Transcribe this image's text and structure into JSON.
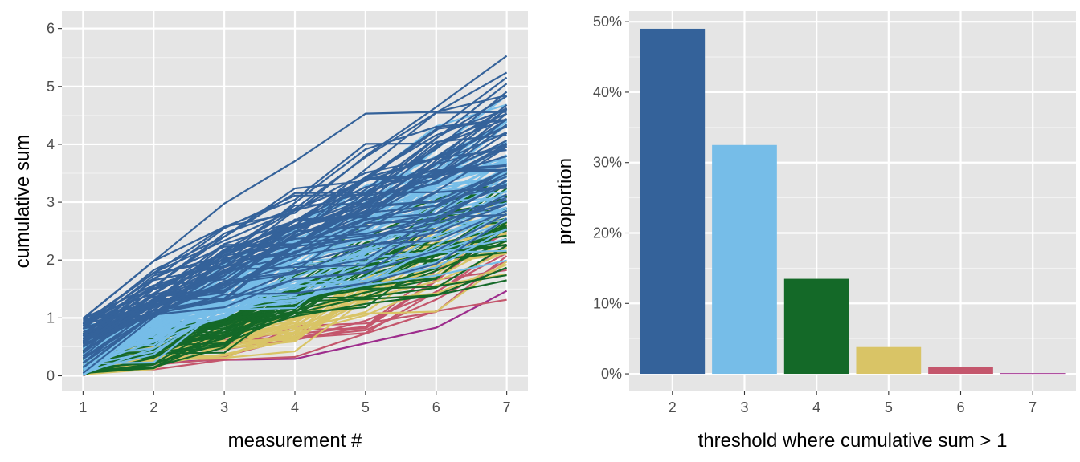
{
  "colors": {
    "panel_bg": "#e5e5e5",
    "grid": "#ffffff",
    "thresholds": {
      "2": "#34629a",
      "3": "#76bde8",
      "4": "#146928",
      "5": "#d9c466",
      "6": "#c4566c",
      "7": "#9d2c8c"
    }
  },
  "chart_data": [
    {
      "type": "line",
      "xlabel": "measurement #",
      "ylabel": "cumulative sum",
      "x": [
        1,
        2,
        3,
        4,
        5,
        6,
        7
      ],
      "xlim": [
        0.7,
        7.3
      ],
      "ylim": [
        -0.27,
        6.3
      ],
      "xticks": [
        1,
        2,
        3,
        4,
        5,
        6,
        7
      ],
      "yticks": [
        0,
        1,
        2,
        3,
        4,
        5,
        6
      ],
      "grid": true,
      "legend": "none",
      "series_groups": [
        {
          "threshold": 2,
          "approx_count": 60,
          "y7_range": [
            3.9,
            5.55
          ]
        },
        {
          "threshold": 3,
          "approx_count": 60,
          "y7_range": [
            2.6,
            5.0
          ]
        },
        {
          "threshold": 4,
          "approx_count": 40,
          "y7_range": [
            1.5,
            3.2
          ]
        },
        {
          "threshold": 5,
          "approx_count": 25,
          "y7_range": [
            1.25,
            2.6
          ]
        },
        {
          "threshold": 6,
          "approx_count": 8,
          "y7_range": [
            1.2,
            1.6
          ]
        },
        {
          "threshold": 7,
          "approx_count": 1,
          "y7_range": [
            1.5,
            1.5
          ]
        }
      ]
    },
    {
      "type": "bar",
      "xlabel": "threshold where cumulative sum > 1",
      "ylabel": "proportion",
      "categories": [
        "2",
        "3",
        "4",
        "5",
        "6",
        "7"
      ],
      "values": [
        0.49,
        0.325,
        0.135,
        0.038,
        0.01,
        0.001
      ],
      "ylim": [
        -0.025,
        0.515
      ],
      "yticks": [
        0,
        0.1,
        0.2,
        0.3,
        0.4,
        0.5
      ],
      "ytick_labels": [
        "0%",
        "10%",
        "20%",
        "30%",
        "40%",
        "50%"
      ],
      "grid": true,
      "legend": "none"
    }
  ]
}
